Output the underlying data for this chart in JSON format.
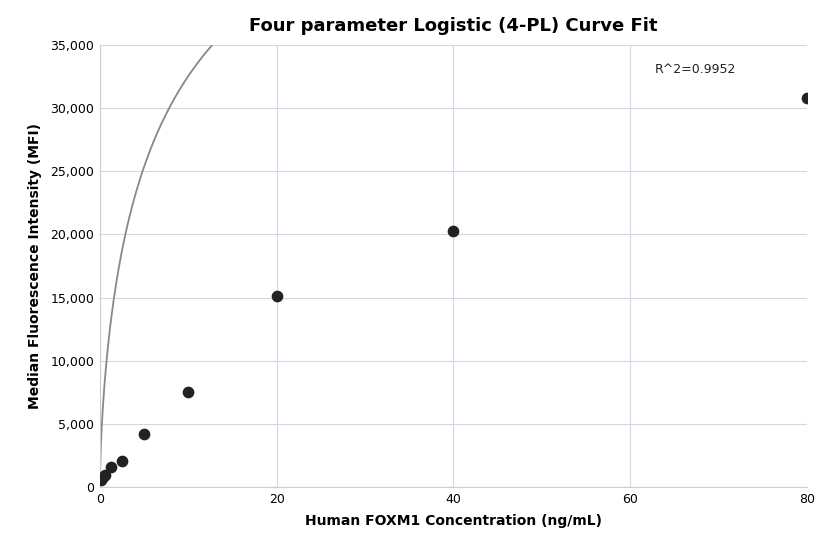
{
  "title": "Four parameter Logistic (4-PL) Curve Fit",
  "xlabel": "Human FOXM1 Concentration (ng/mL)",
  "ylabel": "Median Fluorescence Intensity (MFI)",
  "scatter_x": [
    0.156,
    0.313,
    0.625,
    1.25,
    2.5,
    5.0,
    10.0,
    20.0,
    40.0,
    80.0
  ],
  "scatter_y": [
    600,
    800,
    1000,
    1600,
    2100,
    4200,
    7500,
    15100,
    20300,
    30800
  ],
  "r_squared": "R^2=0.9952",
  "xlim": [
    0,
    80
  ],
  "ylim": [
    0,
    35000
  ],
  "xticks": [
    0,
    20,
    40,
    60,
    80
  ],
  "yticks": [
    0,
    5000,
    10000,
    15000,
    20000,
    25000,
    30000,
    35000
  ],
  "scatter_color": "#222222",
  "curve_color": "#888888",
  "grid_color": "#d0d8e8",
  "background_color": "#ffffff",
  "title_fontsize": 13,
  "label_fontsize": 10,
  "tick_fontsize": 9,
  "annotation_fontsize": 9,
  "scatter_size": 55,
  "figsize": [
    8.32,
    5.6
  ],
  "dpi": 100
}
